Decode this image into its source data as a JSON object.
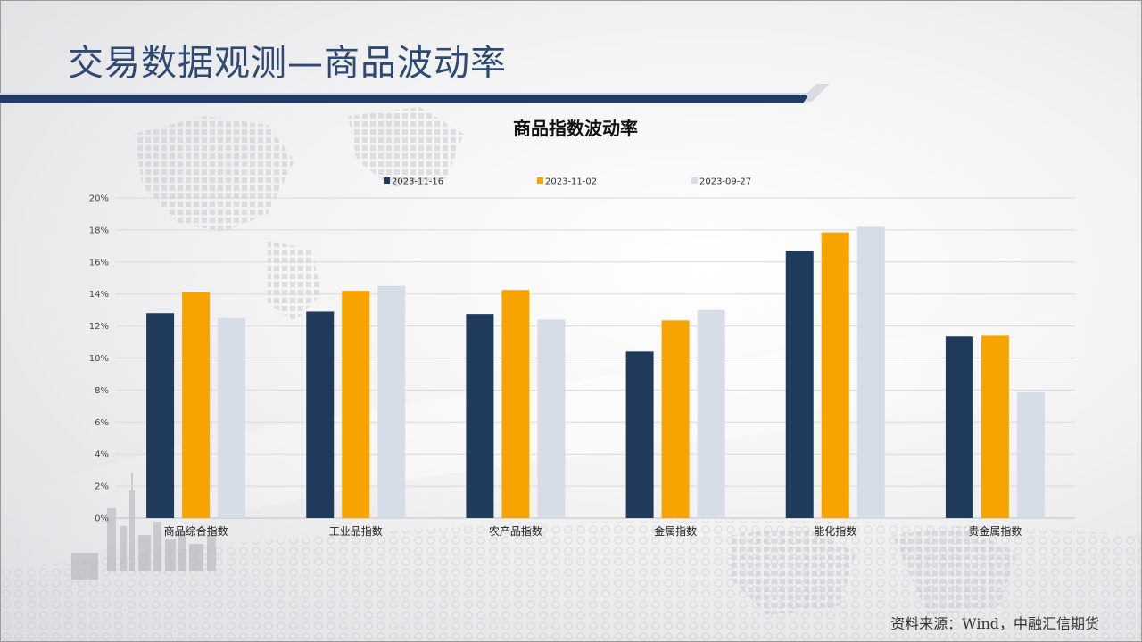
{
  "slide": {
    "title": "交易数据观测—商品波动率",
    "source": "资料来源：Wind，中融汇信期货"
  },
  "colors": {
    "title": "#2f4a72",
    "rule_dark": "#233a63",
    "series": [
      "#1f3a5a",
      "#f7a400",
      "#d6dde6"
    ]
  },
  "chart_data": {
    "type": "bar",
    "title": "商品指数波动率",
    "categories": [
      "商品综合指数",
      "工业品指数",
      "农产品指数",
      "金属指数",
      "能化指数",
      "贵金属指数"
    ],
    "series": [
      {
        "name": "2023-11-16",
        "values": [
          12.8,
          12.9,
          12.75,
          10.4,
          16.7,
          11.35
        ]
      },
      {
        "name": "2023-11-02",
        "values": [
          14.1,
          14.2,
          14.25,
          12.35,
          17.85,
          11.4
        ]
      },
      {
        "name": "2023-09-27",
        "values": [
          12.5,
          14.5,
          12.4,
          13.0,
          18.2,
          7.85
        ]
      }
    ],
    "ylim": [
      0,
      20
    ],
    "yticks": [
      "0%",
      "2%",
      "4%",
      "6%",
      "8%",
      "10%",
      "12%",
      "14%",
      "16%",
      "18%",
      "20%"
    ],
    "legend_position": "top",
    "grid": true
  }
}
